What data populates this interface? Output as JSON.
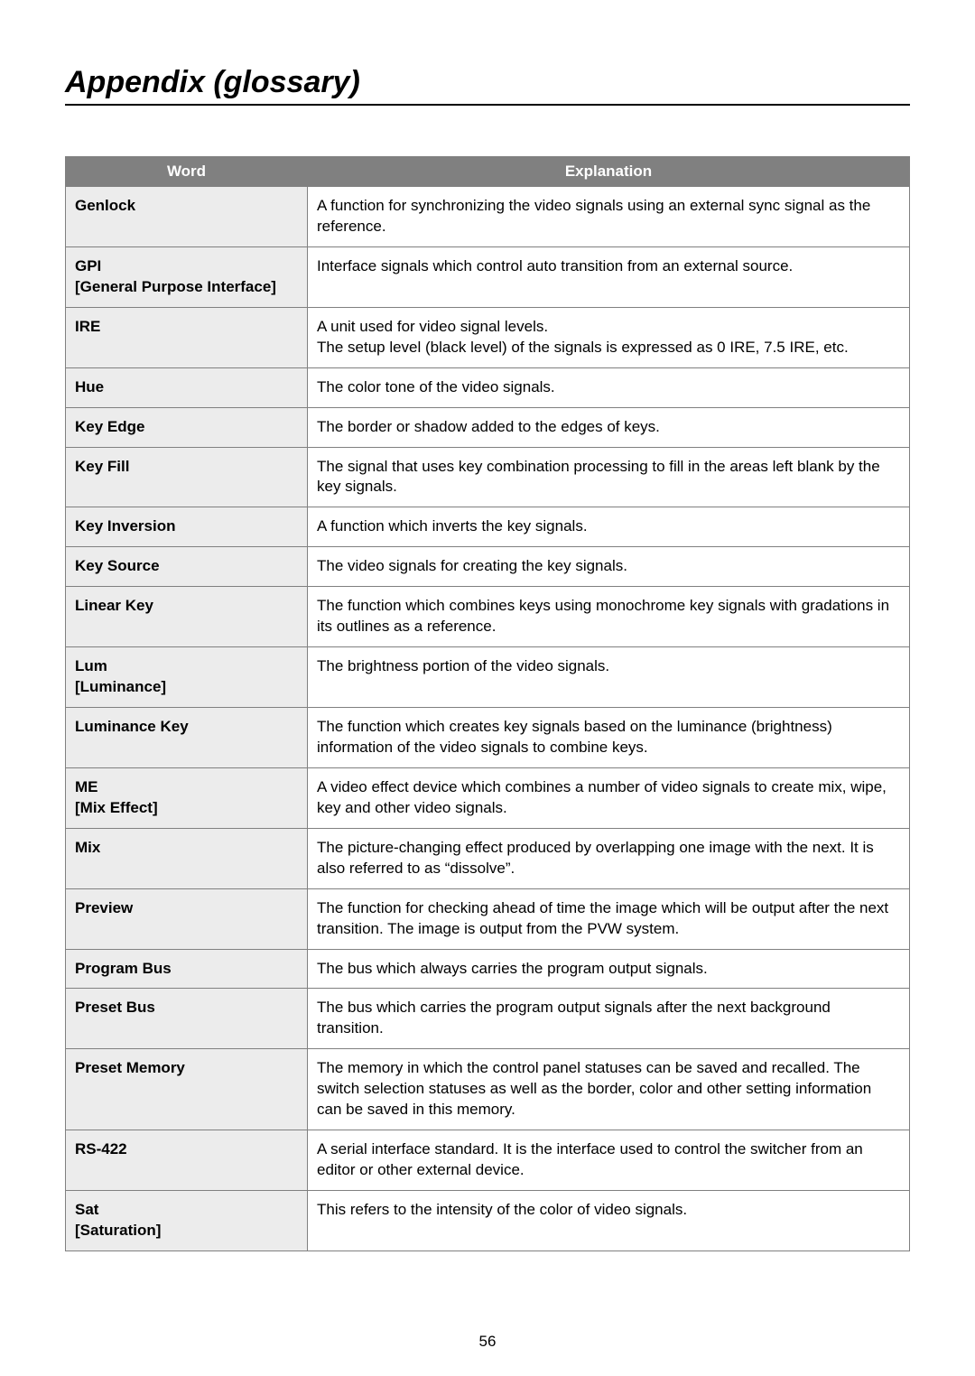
{
  "title": "Appendix (glossary)",
  "page_number": "56",
  "table": {
    "header": {
      "word": "Word",
      "explanation": "Explanation"
    },
    "rows": [
      {
        "term": "Genlock",
        "sub": "",
        "def": "A function for synchronizing the video signals using an external sync signal as the reference."
      },
      {
        "term": "GPI",
        "sub": "[General Purpose Interface]",
        "def": "Interface signals which control auto transition from an external source."
      },
      {
        "term": "IRE",
        "sub": "",
        "def": "A unit used for video signal levels.\nThe setup level (black level) of the signals is expressed as 0 IRE, 7.5 IRE, etc."
      },
      {
        "term": "Hue",
        "sub": "",
        "def": "The color tone of the video signals."
      },
      {
        "term": "Key Edge",
        "sub": "",
        "def": "The border or shadow added to the edges of keys."
      },
      {
        "term": "Key Fill",
        "sub": "",
        "def": "The signal that uses key combination processing to fill in the areas left blank by the key signals."
      },
      {
        "term": "Key Inversion",
        "sub": "",
        "def": "A function which inverts the key signals."
      },
      {
        "term": "Key Source",
        "sub": "",
        "def": "The video signals for creating the key signals."
      },
      {
        "term": "Linear Key",
        "sub": "",
        "def": "The function which combines keys using monochrome key signals with gradations in its outlines as a reference."
      },
      {
        "term": "Lum",
        "sub": "[Luminance]",
        "def": "The brightness portion of the video signals."
      },
      {
        "term": "Luminance Key",
        "sub": "",
        "def": "The function which creates key signals based on the luminance (brightness) information of the video signals to combine keys."
      },
      {
        "term": "ME",
        "sub": "[Mix Effect]",
        "def": "A video effect device which combines a number of video signals to create mix, wipe, key and other video signals."
      },
      {
        "term": "Mix",
        "sub": "",
        "def": "The picture-changing effect produced by overlapping one image with the next. It is also referred to as “dissolve”."
      },
      {
        "term": "Preview",
        "sub": "",
        "def": "The function for checking ahead of time the image which will be output after the next transition. The image is output from the PVW system."
      },
      {
        "term": "Program Bus",
        "sub": "",
        "def": "The bus which always carries the program output signals."
      },
      {
        "term": "Preset Bus",
        "sub": "",
        "def": "The bus which carries the program output signals after the next background transition."
      },
      {
        "term": "Preset Memory",
        "sub": "",
        "def": "The memory in which the control panel statuses can be saved and recalled. The switch selection statuses as well as the border, color and other setting information can be saved in this memory."
      },
      {
        "term": "RS-422",
        "sub": "",
        "def": "A serial interface standard. It is the interface used to control the switcher from an editor or other external device."
      },
      {
        "term": "Sat",
        "sub": "[Saturation]",
        "def": "This refers to the intensity of the color of video signals."
      }
    ]
  }
}
